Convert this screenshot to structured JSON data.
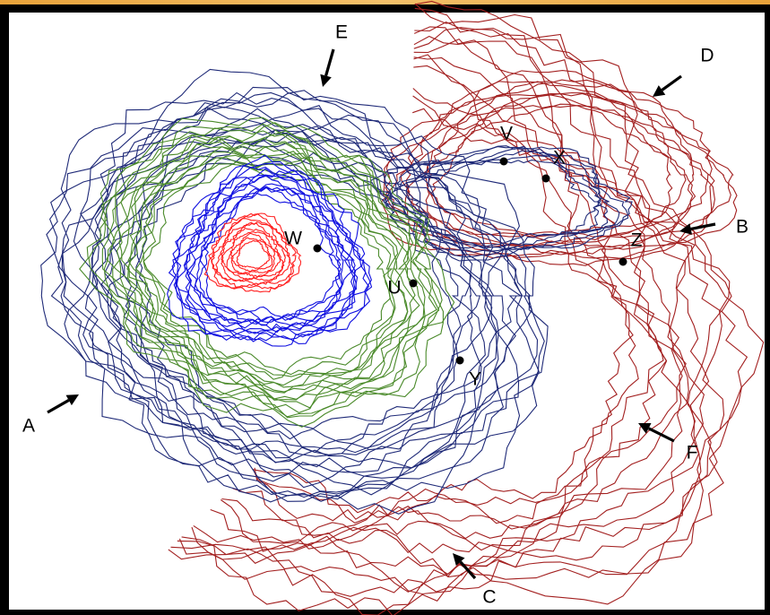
{
  "map": {
    "contour_colors": {
      "outer": "#a32020",
      "low": "#1f2a78",
      "middle": "#4a8a2a",
      "high": "#1010e0",
      "summit": "#ff2020"
    },
    "arrows": [
      {
        "label": "A",
        "direction": "north-east"
      },
      {
        "label": "B",
        "direction": "west"
      },
      {
        "label": "C",
        "direction": "north-west"
      },
      {
        "label": "D",
        "direction": "south-west"
      },
      {
        "label": "E",
        "direction": "south"
      },
      {
        "label": "F",
        "direction": "north-west"
      }
    ],
    "points": [
      {
        "label": "W"
      },
      {
        "label": "U"
      },
      {
        "label": "V"
      },
      {
        "label": "X"
      },
      {
        "label": "Z"
      },
      {
        "label": "Y"
      }
    ]
  }
}
